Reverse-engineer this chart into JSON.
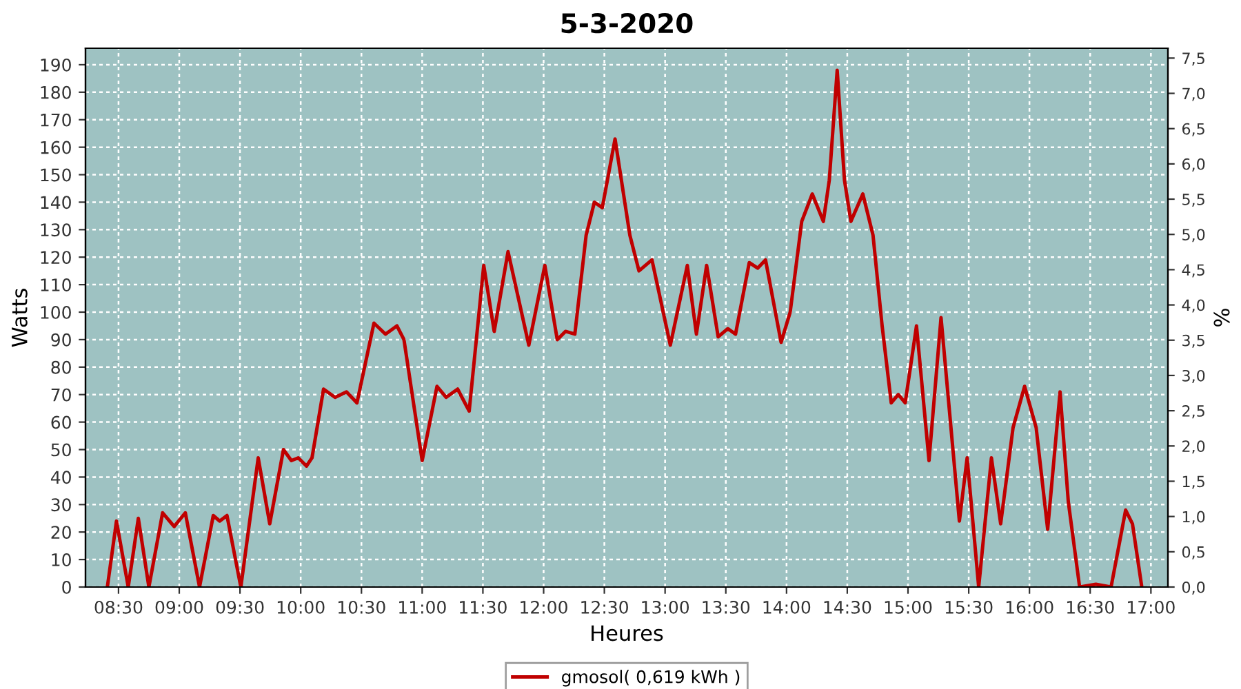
{
  "chart_data": {
    "type": "line",
    "title": "5-3-2020",
    "xlabel": "Heures",
    "ylabel": "Watts",
    "y2label": "%",
    "x": [
      8.408,
      8.483,
      8.58,
      8.663,
      8.75,
      8.863,
      8.958,
      9.05,
      9.167,
      9.28,
      9.333,
      9.393,
      9.507,
      9.65,
      9.745,
      9.858,
      9.923,
      9.98,
      10.048,
      10.093,
      10.188,
      10.283,
      10.377,
      10.463,
      10.603,
      10.698,
      10.792,
      10.85,
      11.0,
      11.122,
      11.197,
      11.292,
      11.387,
      11.507,
      11.593,
      11.707,
      11.878,
      12.01,
      12.112,
      12.18,
      12.257,
      12.35,
      12.418,
      12.483,
      12.588,
      12.71,
      12.785,
      12.892,
      13.043,
      13.183,
      13.258,
      13.342,
      13.437,
      13.517,
      13.58,
      13.693,
      13.762,
      13.827,
      13.955,
      14.03,
      14.125,
      14.212,
      14.303,
      14.352,
      14.417,
      14.477,
      14.53,
      14.628,
      14.712,
      14.787,
      14.862,
      14.92,
      14.977,
      15.07,
      15.173,
      15.272,
      15.423,
      15.487,
      15.582,
      15.687,
      15.763,
      15.865,
      15.96,
      16.055,
      16.15,
      16.252,
      16.32,
      16.413,
      16.547,
      16.672,
      16.792,
      16.848,
      16.925
    ],
    "series": [
      {
        "name": "gmosol( 0,619 kWh )",
        "color": "#c00000",
        "values": [
          0,
          24,
          0,
          25,
          0,
          27,
          22,
          27,
          0,
          26,
          24,
          26,
          0,
          47,
          23,
          50,
          46,
          47,
          44,
          47,
          72,
          69,
          71,
          67,
          96,
          92,
          95,
          90,
          46,
          73,
          69,
          72,
          64,
          117,
          93,
          122,
          88,
          117,
          90,
          93,
          92,
          128,
          140,
          138,
          163,
          128,
          115,
          119,
          88,
          117,
          92,
          117,
          91,
          94,
          92,
          118,
          116,
          119,
          89,
          100,
          133,
          143,
          133,
          148,
          188,
          148,
          133,
          143,
          128,
          95,
          67,
          70,
          67,
          95,
          46,
          98,
          24,
          47,
          0,
          47,
          23,
          58,
          73,
          58,
          21,
          71,
          31,
          0,
          1,
          0,
          28,
          23,
          0
        ]
      }
    ],
    "xlim": [
      8.228,
      17.14
    ],
    "xticks": [
      {
        "value": 8.5,
        "label": "08:30"
      },
      {
        "value": 9,
        "label": "09:00"
      },
      {
        "value": 9.5,
        "label": "09:30"
      },
      {
        "value": 10,
        "label": "10:00"
      },
      {
        "value": 10.5,
        "label": "10:30"
      },
      {
        "value": 11,
        "label": "11:00"
      },
      {
        "value": 11.5,
        "label": "11:30"
      },
      {
        "value": 12,
        "label": "12:00"
      },
      {
        "value": 12.5,
        "label": "12:30"
      },
      {
        "value": 13,
        "label": "13:00"
      },
      {
        "value": 13.5,
        "label": "13:30"
      },
      {
        "value": 14,
        "label": "14:00"
      },
      {
        "value": 14.5,
        "label": "14:30"
      },
      {
        "value": 15,
        "label": "15:00"
      },
      {
        "value": 15.5,
        "label": "15:30"
      },
      {
        "value": 16,
        "label": "16:00"
      },
      {
        "value": 16.5,
        "label": "16:30"
      },
      {
        "value": 17,
        "label": "17:00"
      }
    ],
    "ylim": [
      0,
      196
    ],
    "yticks": [
      0,
      10,
      20,
      30,
      40,
      50,
      60,
      70,
      80,
      90,
      100,
      110,
      120,
      130,
      140,
      150,
      160,
      170,
      180,
      190
    ],
    "y2lim": [
      0,
      7.64
    ],
    "y2ticks": [
      {
        "value": 0,
        "label": "0,0"
      },
      {
        "value": 0.5,
        "label": "0,5"
      },
      {
        "value": 1,
        "label": "1,0"
      },
      {
        "value": 1.5,
        "label": "1,5"
      },
      {
        "value": 2,
        "label": "2,0"
      },
      {
        "value": 2.5,
        "label": "2,5"
      },
      {
        "value": 3,
        "label": "3,0"
      },
      {
        "value": 3.5,
        "label": "3,5"
      },
      {
        "value": 4,
        "label": "4,0"
      },
      {
        "value": 4.5,
        "label": "4,5"
      },
      {
        "value": 5,
        "label": "5,0"
      },
      {
        "value": 5.5,
        "label": "5,5"
      },
      {
        "value": 6,
        "label": "6,0"
      },
      {
        "value": 6.5,
        "label": "6,5"
      },
      {
        "value": 7,
        "label": "7,0"
      },
      {
        "value": 7.5,
        "label": "7,5"
      }
    ],
    "grid": true,
    "legend": "bottom",
    "marker": "none",
    "line_style": "solid"
  }
}
